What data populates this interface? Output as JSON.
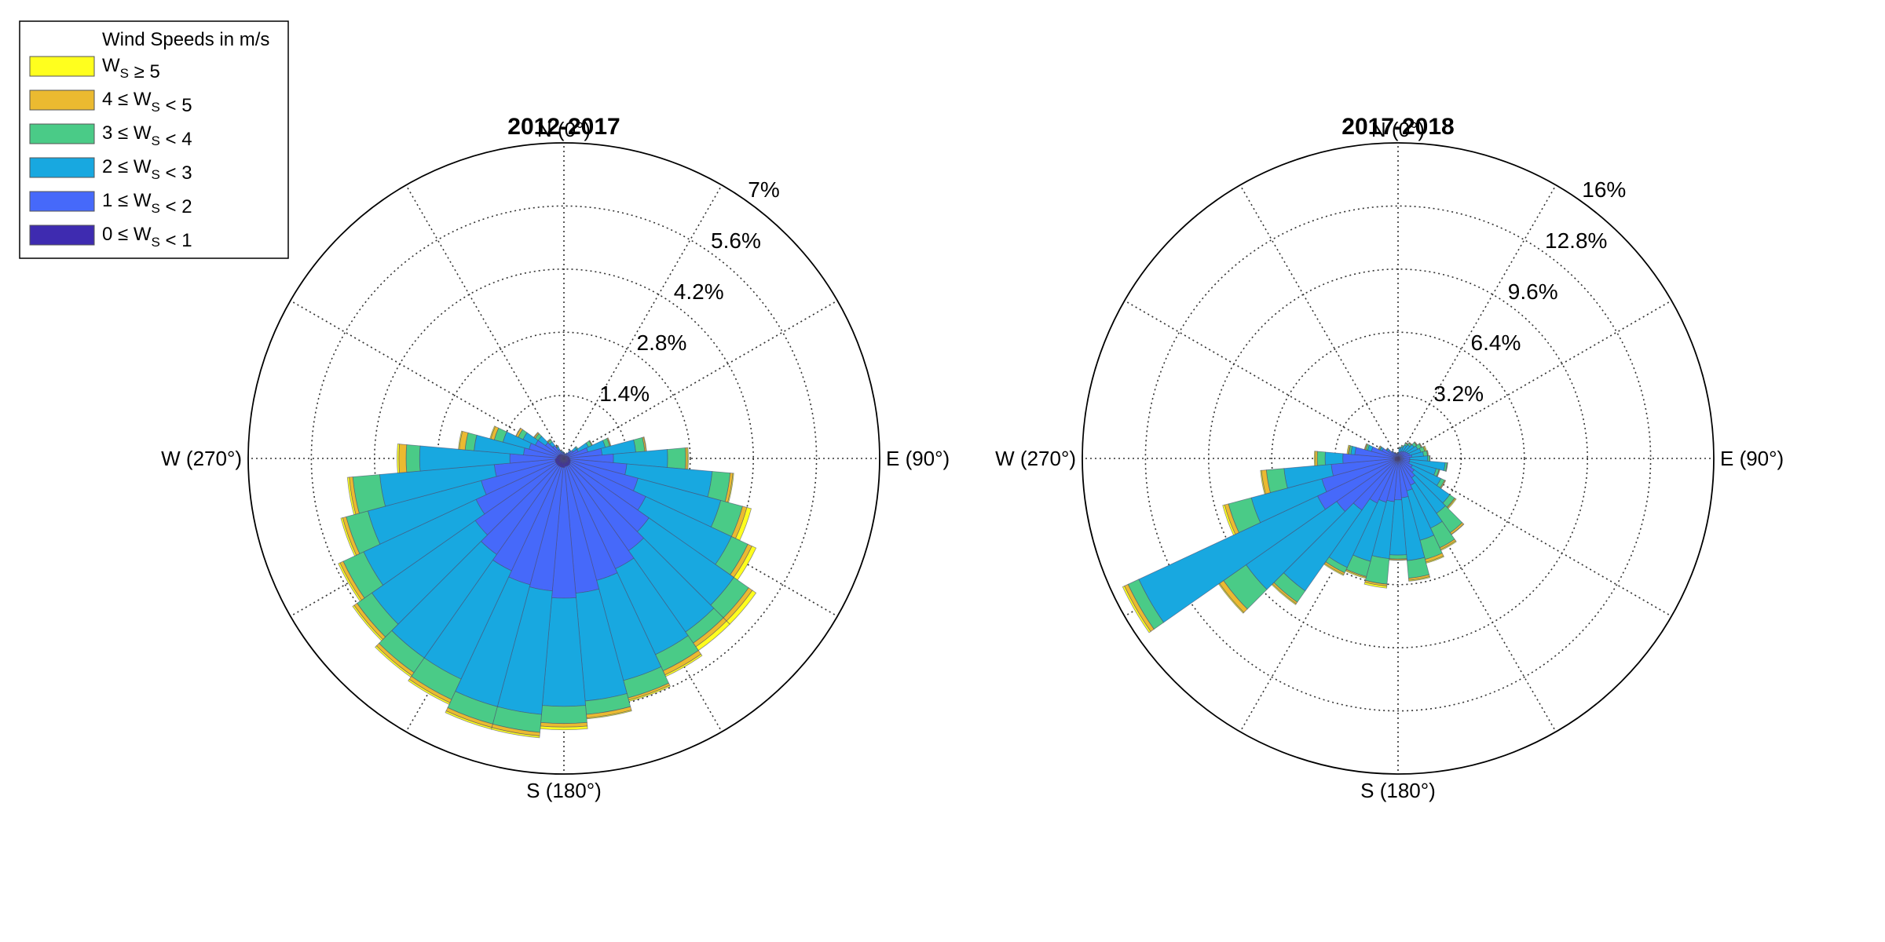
{
  "chart_data": {
    "type": "windrose",
    "legend": {
      "title": "Wind Speeds in m/s",
      "placement": "top-left",
      "entries": [
        {
          "text": "W_S ≥ 5",
          "color": "#FFFF1E"
        },
        {
          "text": "4 ≤ W_S < 5",
          "color": "#EBBA30"
        },
        {
          "text": "3 ≤ W_S < 4",
          "color": "#4ACB87"
        },
        {
          "text": "2 ≤ W_S < 3",
          "color": "#18A8E0"
        },
        {
          "text": "1 ≤ W_S < 2",
          "color": "#4669FA"
        },
        {
          "text": "0 ≤ W_S < 1",
          "color": "#3E2BB0"
        }
      ]
    },
    "speed_bins": [
      "0 ≤ W_S < 1",
      "1 ≤ W_S < 2",
      "2 ≤ W_S < 3",
      "3 ≤ W_S < 4",
      "4 ≤ W_S < 5",
      "W_S ≥ 5"
    ],
    "bin_colors": [
      "#3E2BB0",
      "#4669FA",
      "#18A8E0",
      "#4ACB87",
      "#EBBA30",
      "#FFFF1E"
    ],
    "direction_labels": {
      "north": "N (0°)",
      "east": "E (90°)",
      "south": "S (180°)",
      "west": "W (270°)"
    },
    "sector_width_deg": 10,
    "roses": [
      {
        "title": "2012-2017",
        "rmax": 7,
        "ring_labels": [
          "1.4%",
          "2.8%",
          "4.2%",
          "5.6%",
          "7%"
        ],
        "directions": [
          0,
          10,
          20,
          30,
          40,
          50,
          60,
          70,
          80,
          90,
          100,
          110,
          120,
          130,
          140,
          150,
          160,
          170,
          180,
          190,
          200,
          210,
          220,
          230,
          240,
          250,
          260,
          270,
          280,
          290,
          300,
          310,
          320,
          330,
          340,
          350
        ],
        "cumulative": [
          [
            0.06,
            0.12,
            0.13,
            0.13,
            0.13,
            0.13
          ],
          [
            0.06,
            0.1,
            0.11,
            0.11,
            0.11,
            0.11
          ],
          [
            0.06,
            0.1,
            0.11,
            0.11,
            0.11,
            0.11
          ],
          [
            0.06,
            0.12,
            0.14,
            0.14,
            0.14,
            0.14
          ],
          [
            0.07,
            0.18,
            0.22,
            0.23,
            0.23,
            0.23
          ],
          [
            0.08,
            0.25,
            0.35,
            0.38,
            0.38,
            0.38
          ],
          [
            0.09,
            0.35,
            0.6,
            0.68,
            0.69,
            0.7
          ],
          [
            0.1,
            0.55,
            0.95,
            1.05,
            1.07,
            1.08
          ],
          [
            0.12,
            0.85,
            1.6,
            1.8,
            1.83,
            1.84
          ],
          [
            0.12,
            1.1,
            2.3,
            2.7,
            2.74,
            2.76
          ],
          [
            0.14,
            1.4,
            3.3,
            3.7,
            3.76,
            3.78
          ],
          [
            0.15,
            1.7,
            3.6,
            4.1,
            4.2,
            4.3
          ],
          [
            0.16,
            2.0,
            4.1,
            4.5,
            4.6,
            4.7
          ],
          [
            0.17,
            2.3,
            4.6,
            5.0,
            5.1,
            5.2
          ],
          [
            0.18,
            2.5,
            4.7,
            5.0,
            5.1,
            5.2
          ],
          [
            0.18,
            2.7,
            4.8,
            5.2,
            5.3,
            5.34
          ],
          [
            0.18,
            2.8,
            5.1,
            5.5,
            5.55,
            5.58
          ],
          [
            0.18,
            3.0,
            5.4,
            5.7,
            5.78,
            5.8
          ],
          [
            0.2,
            3.1,
            5.5,
            5.88,
            5.96,
            6.02
          ],
          [
            0.2,
            2.95,
            5.7,
            6.1,
            6.18,
            6.22
          ],
          [
            0.2,
            2.9,
            5.7,
            6.1,
            6.18,
            6.22
          ],
          [
            0.2,
            2.75,
            5.4,
            5.9,
            5.98,
            6.02
          ],
          [
            0.2,
            2.6,
            5.4,
            5.8,
            5.88,
            5.92
          ],
          [
            0.2,
            2.4,
            5.2,
            5.6,
            5.68,
            5.72
          ],
          [
            0.2,
            2.15,
            4.9,
            5.4,
            5.48,
            5.52
          ],
          [
            0.2,
            1.9,
            4.5,
            5.0,
            5.08,
            5.12
          ],
          [
            0.2,
            1.55,
            4.1,
            4.7,
            4.78,
            4.82
          ],
          [
            0.18,
            1.2,
            3.2,
            3.5,
            3.66,
            3.7
          ],
          [
            0.16,
            0.9,
            2.0,
            2.2,
            2.33,
            2.35
          ],
          [
            0.15,
            0.8,
            1.4,
            1.6,
            1.68,
            1.7
          ],
          [
            0.14,
            0.7,
            1.0,
            1.12,
            1.17,
            1.18
          ],
          [
            0.13,
            0.5,
            0.7,
            0.78,
            0.81,
            0.82
          ],
          [
            0.12,
            0.35,
            0.45,
            0.5,
            0.52,
            0.53
          ],
          [
            0.1,
            0.22,
            0.28,
            0.3,
            0.31,
            0.32
          ],
          [
            0.08,
            0.15,
            0.18,
            0.19,
            0.2,
            0.2
          ],
          [
            0.07,
            0.13,
            0.15,
            0.16,
            0.16,
            0.16
          ]
        ]
      },
      {
        "title": "2017-2018",
        "rmax": 16,
        "ring_labels": [
          "3.2%",
          "6.4%",
          "9.6%",
          "12.8%",
          "16%"
        ],
        "directions": [
          0,
          10,
          20,
          30,
          40,
          50,
          60,
          70,
          80,
          90,
          100,
          110,
          120,
          130,
          140,
          150,
          160,
          170,
          180,
          190,
          200,
          210,
          220,
          230,
          240,
          250,
          260,
          270,
          280,
          290,
          300,
          310,
          320,
          330,
          340,
          350
        ],
        "cumulative": [
          [
            0.1,
            0.2,
            0.25,
            0.26,
            0.26,
            0.26
          ],
          [
            0.1,
            0.3,
            0.5,
            0.56,
            0.57,
            0.58
          ],
          [
            0.1,
            0.35,
            0.6,
            0.68,
            0.7,
            0.7
          ],
          [
            0.1,
            0.4,
            0.75,
            0.85,
            0.88,
            0.9
          ],
          [
            0.1,
            0.45,
            0.85,
            0.95,
            0.98,
            1.0
          ],
          [
            0.1,
            0.5,
            1.0,
            1.15,
            1.18,
            1.2
          ],
          [
            0.1,
            0.55,
            1.1,
            1.3,
            1.33,
            1.35
          ],
          [
            0.1,
            0.6,
            1.2,
            1.4,
            1.45,
            1.5
          ],
          [
            0.1,
            0.7,
            1.3,
            1.5,
            1.53,
            1.55
          ],
          [
            0.1,
            0.6,
            1.5,
            1.6,
            1.62,
            1.63
          ],
          [
            0.1,
            0.6,
            2.4,
            2.5,
            2.52,
            2.53
          ],
          [
            0.1,
            0.6,
            2.0,
            2.15,
            2.18,
            2.2
          ],
          [
            0.12,
            0.8,
            2.4,
            2.6,
            2.65,
            2.66
          ],
          [
            0.12,
            1.0,
            3.2,
            3.5,
            3.55,
            3.6
          ],
          [
            0.13,
            1.2,
            3.4,
            4.6,
            4.7,
            4.72
          ],
          [
            0.13,
            1.5,
            3.9,
            5.0,
            5.1,
            5.15
          ],
          [
            0.13,
            1.7,
            4.3,
            5.3,
            5.45,
            5.5
          ],
          [
            0.14,
            2.0,
            5.2,
            6.1,
            6.2,
            6.25
          ],
          [
            0.14,
            2.1,
            4.9,
            5.1,
            5.15,
            5.17
          ],
          [
            0.14,
            2.2,
            5.1,
            6.4,
            6.5,
            6.6
          ],
          [
            0.14,
            2.3,
            5.4,
            6.2,
            6.25,
            6.3
          ],
          [
            0.14,
            2.5,
            6.1,
            6.4,
            6.5,
            6.55
          ],
          [
            0.16,
            3.2,
            8.2,
            8.9,
            9.0,
            9.05
          ],
          [
            0.18,
            3.8,
            9.4,
            10.8,
            11.05,
            11.1
          ],
          [
            0.18,
            4.5,
            14.5,
            15.1,
            15.3,
            15.4
          ],
          [
            0.18,
            4.0,
            7.7,
            8.9,
            9.1,
            9.2
          ],
          [
            0.16,
            3.4,
            5.8,
            6.7,
            6.95,
            7.0
          ],
          [
            0.16,
            2.8,
            3.7,
            4.1,
            4.2,
            4.25
          ],
          [
            0.16,
            2.2,
            2.4,
            2.5,
            2.55,
            2.6
          ],
          [
            0.14,
            1.4,
            1.6,
            1.7,
            1.75,
            1.77
          ],
          [
            0.14,
            0.9,
            1.0,
            1.05,
            1.1,
            1.11
          ],
          [
            0.12,
            0.6,
            0.7,
            0.72,
            0.74,
            0.75
          ],
          [
            0.12,
            0.4,
            0.45,
            0.47,
            0.48,
            0.48
          ],
          [
            0.1,
            0.3,
            0.33,
            0.34,
            0.35,
            0.35
          ],
          [
            0.1,
            0.25,
            0.28,
            0.29,
            0.3,
            0.3
          ],
          [
            0.1,
            0.2,
            0.23,
            0.24,
            0.25,
            0.25
          ]
        ]
      }
    ]
  }
}
